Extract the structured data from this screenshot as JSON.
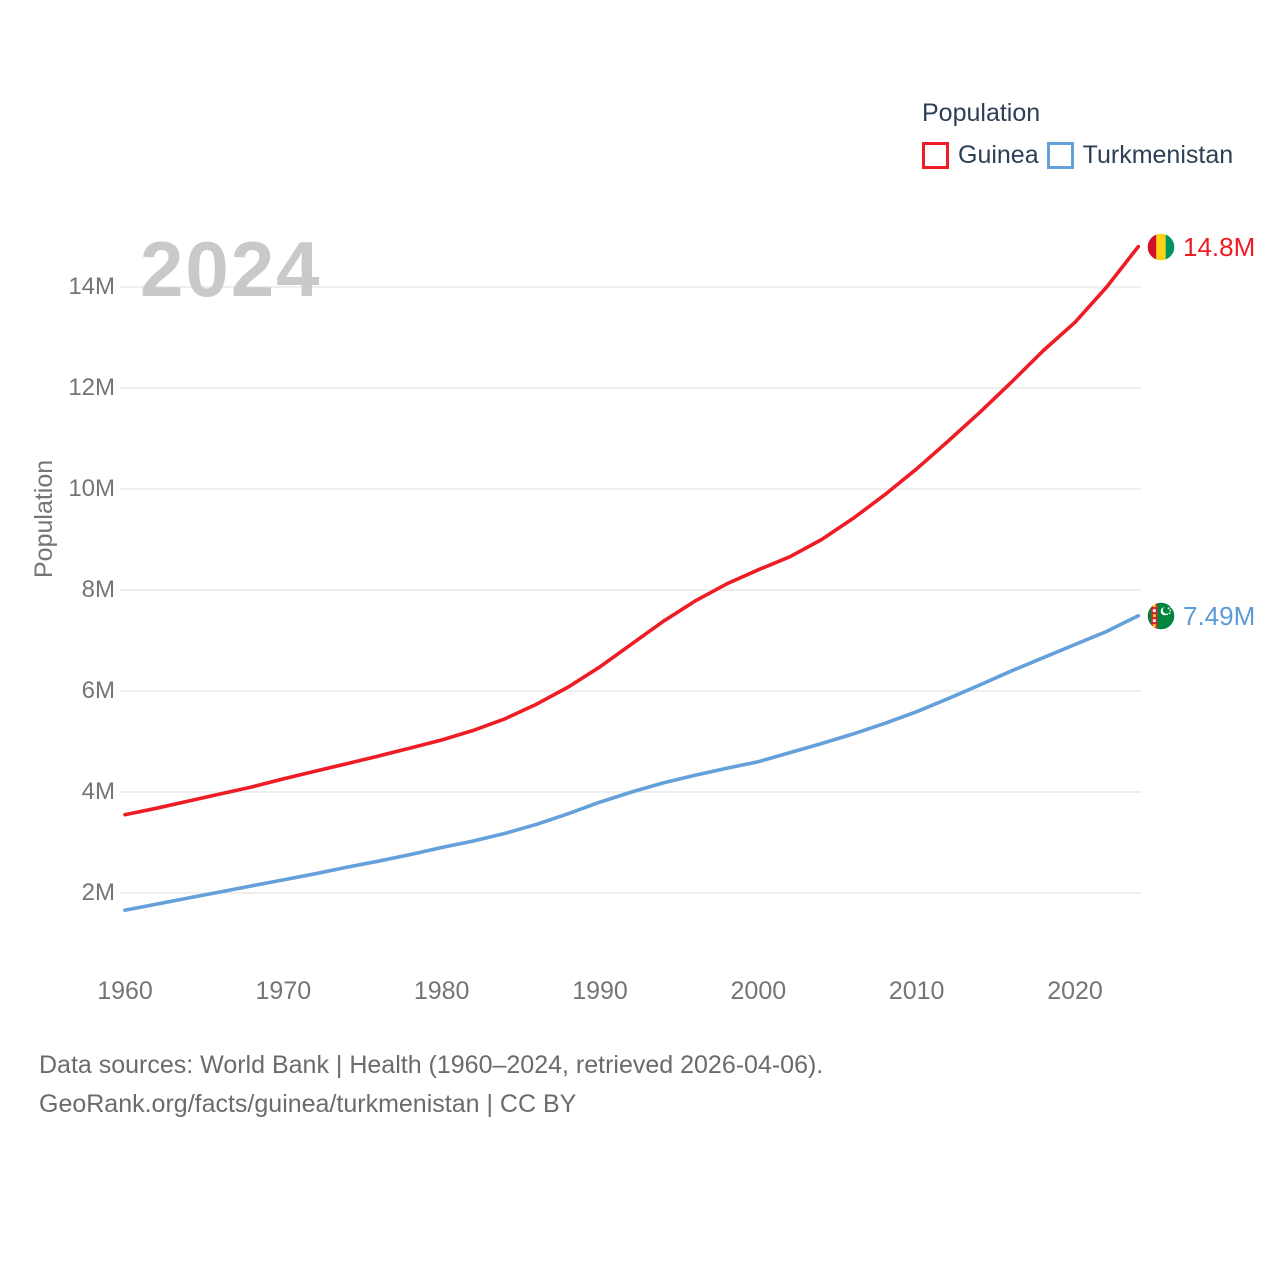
{
  "watermark": "2024",
  "legend": {
    "title": "Population"
  },
  "footer": {
    "line1": "Data sources: World Bank | Health (1960–2024, retrieved 2026-04-06).",
    "line2": "GeoRank.org/facts/guinea/turkmenistan | CC BY"
  },
  "colors": {
    "guinea_red": "#ee1c25",
    "turkmenistan_blue": "#64a0d9",
    "end_label_blue": "#5b9bd7",
    "legend_text": "#2d3f55",
    "axis_text": "#757575",
    "gridline": "#e9e9e9",
    "watermark": "#c9c9c9",
    "footer_text": "#6b6b6b",
    "flag_guinea": [
      "#ce1126",
      "#fcd116",
      "#009460"
    ],
    "flag_turkmenistan": [
      "#00853f",
      "#d22630",
      "#ffffff"
    ]
  },
  "icons": {
    "guinea_flag": "guinea-flag-icon",
    "turkmenistan_flag": "turkmenistan-flag-icon"
  },
  "chart_data": {
    "type": "line",
    "title": "Population",
    "xlabel": "",
    "ylabel": "Population",
    "watermark_year": "2024",
    "grid": "horizontal",
    "legend_position": "top-right",
    "xlim": [
      1960,
      2024
    ],
    "ylim": [
      1.5,
      15.2
    ],
    "x_ticks": [
      "1960",
      "1970",
      "1980",
      "1990",
      "2000",
      "2010",
      "2020"
    ],
    "x_tick_years": [
      1960,
      1970,
      1980,
      1990,
      2000,
      2010,
      2020
    ],
    "y_ticks": [
      "2M",
      "4M",
      "6M",
      "8M",
      "10M",
      "12M",
      "14M"
    ],
    "y_tick_values": [
      2,
      4,
      6,
      8,
      10,
      12,
      14
    ],
    "unit": "millions of people",
    "x": [
      1960,
      1962,
      1964,
      1966,
      1968,
      1970,
      1972,
      1974,
      1976,
      1978,
      1980,
      1982,
      1984,
      1986,
      1988,
      1990,
      1992,
      1994,
      1996,
      1998,
      2000,
      2002,
      2004,
      2006,
      2008,
      2010,
      2012,
      2014,
      2016,
      2018,
      2020,
      2022,
      2024
    ],
    "series": [
      {
        "name": "Guinea",
        "color": "#ee1c25",
        "end_label": "14.8M",
        "end_value": 14.8,
        "values": [
          3.55,
          3.68,
          3.82,
          3.96,
          4.1,
          4.26,
          4.41,
          4.56,
          4.71,
          4.87,
          5.03,
          5.22,
          5.45,
          5.74,
          6.08,
          6.48,
          6.93,
          7.38,
          7.78,
          8.12,
          8.4,
          8.66,
          9.0,
          9.42,
          9.89,
          10.4,
          10.95,
          11.52,
          12.12,
          12.74,
          13.3,
          14.0,
          14.8
        ]
      },
      {
        "name": "Turkmenistan",
        "color": "#64a0d9",
        "end_label": "7.49M",
        "end_value": 7.49,
        "values": [
          1.66,
          1.78,
          1.9,
          2.02,
          2.14,
          2.26,
          2.38,
          2.51,
          2.63,
          2.76,
          2.9,
          3.03,
          3.18,
          3.36,
          3.57,
          3.8,
          4.0,
          4.18,
          4.33,
          4.47,
          4.6,
          4.78,
          4.96,
          5.15,
          5.36,
          5.59,
          5.85,
          6.12,
          6.4,
          6.66,
          6.92,
          7.18,
          7.49
        ]
      }
    ]
  }
}
